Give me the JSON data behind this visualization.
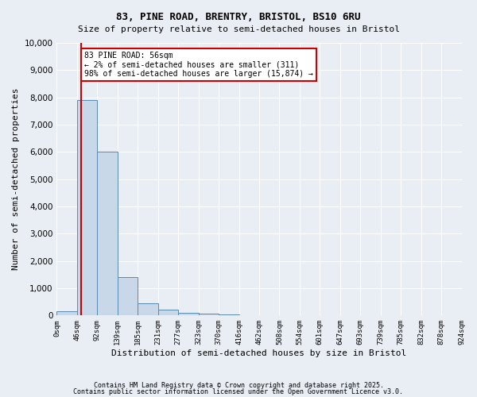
{
  "title1": "83, PINE ROAD, BRENTRY, BRISTOL, BS10 6RU",
  "title2": "Size of property relative to semi-detached houses in Bristol",
  "xlabel": "Distribution of semi-detached houses by size in Bristol",
  "ylabel": "Number of semi-detached properties",
  "bar_values": [
    150,
    7900,
    6000,
    1400,
    450,
    200,
    100,
    70,
    30,
    15,
    8,
    5,
    3,
    2,
    1,
    1,
    0,
    0,
    0,
    0
  ],
  "bin_labels": [
    "0sqm",
    "46sqm",
    "92sqm",
    "139sqm",
    "185sqm",
    "231sqm",
    "277sqm",
    "323sqm",
    "370sqm",
    "416sqm",
    "462sqm",
    "508sqm",
    "554sqm",
    "601sqm",
    "647sqm",
    "693sqm",
    "739sqm",
    "785sqm",
    "832sqm",
    "878sqm",
    "924sqm"
  ],
  "bar_color": "#c8d8e8",
  "bar_edge_color": "#5a8ab0",
  "property_line_x": 1.22,
  "property_sqm": 56,
  "annotation_text": "83 PINE ROAD: 56sqm\n← 2% of semi-detached houses are smaller (311)\n98% of semi-detached houses are larger (15,874) →",
  "annotation_box_color": "#ffffff",
  "annotation_box_edge": "#cc0000",
  "vline_color": "#cc0000",
  "ylim": [
    0,
    10000
  ],
  "yticks": [
    0,
    1000,
    2000,
    3000,
    4000,
    5000,
    6000,
    7000,
    8000,
    9000,
    10000
  ],
  "footer1": "Contains HM Land Registry data © Crown copyright and database right 2025.",
  "footer2": "Contains public sector information licensed under the Open Government Licence v3.0.",
  "bg_color": "#e8eef4",
  "plot_bg_color": "#e8eef4"
}
